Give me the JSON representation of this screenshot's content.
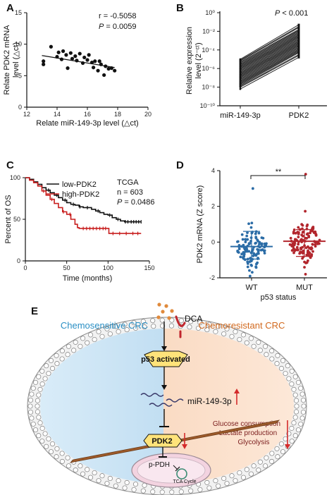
{
  "chart_data": [
    {
      "panel": "A",
      "type": "scatter",
      "xlabel": "Relate miR-149-3p level (△ct)",
      "ylabel_line1": "Relate PDK2 mRNA",
      "ylabel_line2": "level (△ct)",
      "xlim": [
        12,
        20
      ],
      "ylim": [
        0,
        15
      ],
      "xticks": [
        "12",
        "14",
        "16",
        "18",
        "20"
      ],
      "yticks": [
        "0",
        "5",
        "10",
        "15"
      ],
      "stat_r": "r = -0.5058",
      "stat_p_label": "P",
      "stat_p_value": " = 0.0059",
      "regression": {
        "x": [
          13.0,
          17.8
        ],
        "y": [
          8.2,
          6.3
        ]
      },
      "points": [
        {
          "x": 13.1,
          "y": 7.3
        },
        {
          "x": 13.1,
          "y": 6.8
        },
        {
          "x": 13.6,
          "y": 9.6
        },
        {
          "x": 14.0,
          "y": 8.0
        },
        {
          "x": 14.1,
          "y": 8.7
        },
        {
          "x": 14.3,
          "y": 7.6
        },
        {
          "x": 14.4,
          "y": 8.9
        },
        {
          "x": 14.6,
          "y": 8.3
        },
        {
          "x": 14.7,
          "y": 6.2
        },
        {
          "x": 14.9,
          "y": 8.6
        },
        {
          "x": 15.0,
          "y": 7.7
        },
        {
          "x": 15.2,
          "y": 8.1
        },
        {
          "x": 15.3,
          "y": 7.4
        },
        {
          "x": 15.5,
          "y": 8.5
        },
        {
          "x": 15.7,
          "y": 7.0
        },
        {
          "x": 15.8,
          "y": 7.9
        },
        {
          "x": 16.0,
          "y": 7.5
        },
        {
          "x": 16.1,
          "y": 8.3
        },
        {
          "x": 16.3,
          "y": 7.1
        },
        {
          "x": 16.4,
          "y": 6.3
        },
        {
          "x": 16.5,
          "y": 7.3
        },
        {
          "x": 16.7,
          "y": 5.8
        },
        {
          "x": 16.8,
          "y": 7.3
        },
        {
          "x": 16.9,
          "y": 6.8
        },
        {
          "x": 17.1,
          "y": 5.1
        },
        {
          "x": 17.2,
          "y": 6.5
        },
        {
          "x": 17.4,
          "y": 6.1
        },
        {
          "x": 17.6,
          "y": 6.2
        },
        {
          "x": 17.8,
          "y": 5.8
        }
      ]
    },
    {
      "panel": "B",
      "type": "line",
      "log_scale": true,
      "ylabel_line1": "Relative expression",
      "ylabel_line2": "level (2⁻ᶜᵗ)",
      "categories": [
        "miR-149-3p",
        "PDK2"
      ],
      "yticks": [
        "10⁰",
        "10⁻²",
        "10⁻⁴",
        "10⁻⁶",
        "10⁻⁸",
        "10⁻¹⁰"
      ],
      "ylim_log10": [
        -10,
        0
      ],
      "stat_p_label": "P",
      "stat_p_value": " < 0.001",
      "pairs": [
        [
          -5.0,
          -1.3
        ],
        [
          -5.1,
          -1.5
        ],
        [
          -5.2,
          -1.6
        ],
        [
          -5.3,
          -1.8
        ],
        [
          -5.4,
          -1.9
        ],
        [
          -5.5,
          -2.0
        ],
        [
          -5.6,
          -2.1
        ],
        [
          -5.7,
          -2.2
        ],
        [
          -5.8,
          -2.3
        ],
        [
          -5.9,
          -2.4
        ],
        [
          -6.0,
          -2.5
        ],
        [
          -6.1,
          -2.6
        ],
        [
          -6.2,
          -2.7
        ],
        [
          -6.3,
          -2.8
        ],
        [
          -6.4,
          -2.9
        ],
        [
          -6.5,
          -3.0
        ],
        [
          -6.6,
          -3.1
        ],
        [
          -6.7,
          -3.2
        ],
        [
          -6.8,
          -3.3
        ],
        [
          -6.9,
          -3.4
        ],
        [
          -7.0,
          -3.5
        ],
        [
          -7.1,
          -3.6
        ],
        [
          -7.2,
          -3.7
        ],
        [
          -7.3,
          -3.8
        ],
        [
          -7.4,
          -3.9
        ],
        [
          -7.5,
          -4.0
        ],
        [
          -7.6,
          -4.1
        ],
        [
          -7.7,
          -4.2
        ],
        [
          -7.8,
          -4.3
        ],
        [
          -7.9,
          -4.5
        ],
        [
          -8.0,
          -4.6
        ],
        [
          -8.2,
          -4.8
        ]
      ]
    },
    {
      "panel": "C",
      "type": "line",
      "ylabel": "Percent of OS",
      "xlabel": "Time (months)",
      "xlim": [
        0,
        150
      ],
      "ylim": [
        0,
        100
      ],
      "xticks": [
        "0",
        "50",
        "100",
        "150"
      ],
      "yticks": [
        "0",
        "50",
        "100"
      ],
      "legend": [
        "low-PDK2",
        "high-PDK2"
      ],
      "stat_cohort": "TCGA",
      "stat_n": "n = 603",
      "stat_p_label": "P",
      "stat_p_value": " = 0.0486",
      "series": [
        {
          "name": "low-PDK2",
          "color": "#111111",
          "steps": [
            [
              0,
              100
            ],
            [
              5,
              98
            ],
            [
              10,
              95
            ],
            [
              15,
              92
            ],
            [
              20,
              88
            ],
            [
              25,
              85
            ],
            [
              30,
              82
            ],
            [
              35,
              79
            ],
            [
              40,
              76
            ],
            [
              45,
              73
            ],
            [
              50,
              70
            ],
            [
              55,
              68
            ],
            [
              60,
              67
            ],
            [
              65,
              65
            ],
            [
              70,
              64
            ],
            [
              80,
              62
            ],
            [
              85,
              60
            ],
            [
              90,
              58
            ],
            [
              95,
              56
            ],
            [
              100,
              55
            ],
            [
              105,
              52
            ],
            [
              110,
              50
            ],
            [
              115,
              48
            ],
            [
              120,
              47
            ],
            [
              140,
              47
            ]
          ],
          "censor_x": [
            28,
            38,
            48,
            58,
            66,
            75,
            88,
            102,
            112,
            121,
            124,
            128,
            131,
            134,
            137,
            140
          ]
        },
        {
          "name": "high-PDK2",
          "color": "#c81e1e",
          "steps": [
            [
              0,
              100
            ],
            [
              5,
              97
            ],
            [
              10,
              94
            ],
            [
              15,
              90
            ],
            [
              20,
              84
            ],
            [
              25,
              79
            ],
            [
              30,
              74
            ],
            [
              35,
              69
            ],
            [
              40,
              64
            ],
            [
              45,
              59
            ],
            [
              50,
              56
            ],
            [
              55,
              50
            ],
            [
              60,
              44
            ],
            [
              63,
              40
            ],
            [
              65,
              39
            ],
            [
              100,
              39
            ],
            [
              101,
              33
            ],
            [
              140,
              33
            ]
          ],
          "censor_x": [
            22,
            32,
            46,
            54,
            70,
            74,
            78,
            82,
            86,
            90,
            94,
            97,
            106,
            114,
            122,
            130,
            136
          ]
        }
      ]
    },
    {
      "panel": "D",
      "type": "scatter",
      "ylabel": "PDK2 mRNA (Z score)",
      "xlabel": "p53 status",
      "categories": [
        "WT",
        "MUT"
      ],
      "ylim": [
        -2,
        4
      ],
      "yticks": [
        "-2",
        "0",
        "2",
        "4"
      ],
      "significance": "**",
      "groups": [
        {
          "name": "WT",
          "color": "#2b6ca6",
          "mean": -0.25,
          "sd_low": -0.95,
          "sd_high": 0.6,
          "n": 110,
          "range": [
            -1.9,
            3.0
          ]
        },
        {
          "name": "MUT",
          "color": "#b2262d",
          "mean": 0.05,
          "sd_low": -0.8,
          "sd_high": 0.7,
          "n": 120,
          "range": [
            -1.8,
            3.8
          ]
        }
      ]
    }
  ],
  "panel_letters": [
    "A",
    "B",
    "C",
    "D",
    "E"
  ],
  "diagram": {
    "left_title": "Chemosensitive CRC",
    "right_title": "Chemoresistant CRC",
    "drug": "DCA",
    "p53": "p53 activated",
    "mir": "miR-149-3p",
    "pdk2": "PDK2",
    "ppdh": "p-PDH",
    "tca": "TCA Cycle",
    "effects": [
      "Glucose consumption",
      "Lactate production",
      "Glycolysis"
    ],
    "colors": {
      "left": "#2a8fc4",
      "right": "#d2691e",
      "arrow_red": "#d42a2a"
    }
  }
}
